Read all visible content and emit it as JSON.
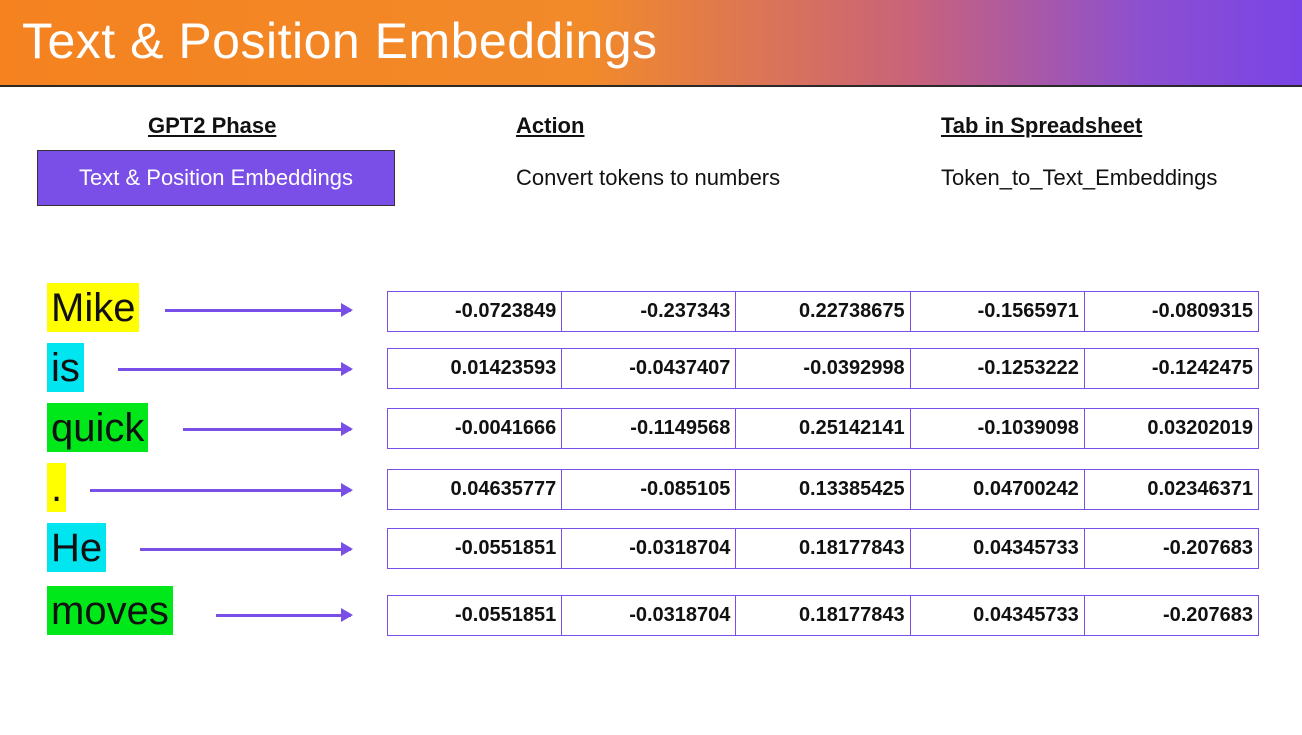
{
  "slide": {
    "title": "Text & Position Embeddings",
    "headers": {
      "phase": "GPT2 Phase",
      "action": "Action",
      "tab": "Tab in Spreadsheet"
    },
    "phase_value": "Text & Position Embeddings",
    "action_value": "Convert tokens to numbers",
    "tab_value": "Token_to_Text_Embeddings",
    "colors": {
      "accent_purple": "#7a4fe8",
      "banner_orange": "#f5821f",
      "highlight_yellow": "#ffff00",
      "highlight_cyan": "#00e5f0",
      "highlight_green": "#00e81a"
    }
  },
  "tokens": [
    {
      "text": "Mike",
      "highlight": "yellow",
      "values": [
        "-0.0723849",
        "-0.237343",
        "0.22738675",
        "-0.1565971",
        "-0.0809315"
      ]
    },
    {
      "text": "is",
      "highlight": "cyan",
      "values": [
        "0.01423593",
        "-0.0437407",
        "-0.0392998",
        "-0.1253222",
        "-0.1242475"
      ]
    },
    {
      "text": "quick",
      "highlight": "green",
      "values": [
        "-0.0041666",
        "-0.1149568",
        "0.25142141",
        "-0.1039098",
        "0.03202019"
      ]
    },
    {
      "text": ".",
      "highlight": "yellow",
      "values": [
        "0.04635777",
        "-0.085105",
        "0.13385425",
        "0.04700242",
        "0.02346371"
      ]
    },
    {
      "text": "He",
      "highlight": "cyan",
      "values": [
        "-0.0551851",
        "-0.0318704",
        "0.18177843",
        "0.04345733",
        "-0.207683"
      ]
    },
    {
      "text": "moves",
      "highlight": "green",
      "values": [
        "-0.0551851",
        "-0.0318704",
        "0.18177843",
        "0.04345733",
        "-0.207683"
      ]
    }
  ]
}
